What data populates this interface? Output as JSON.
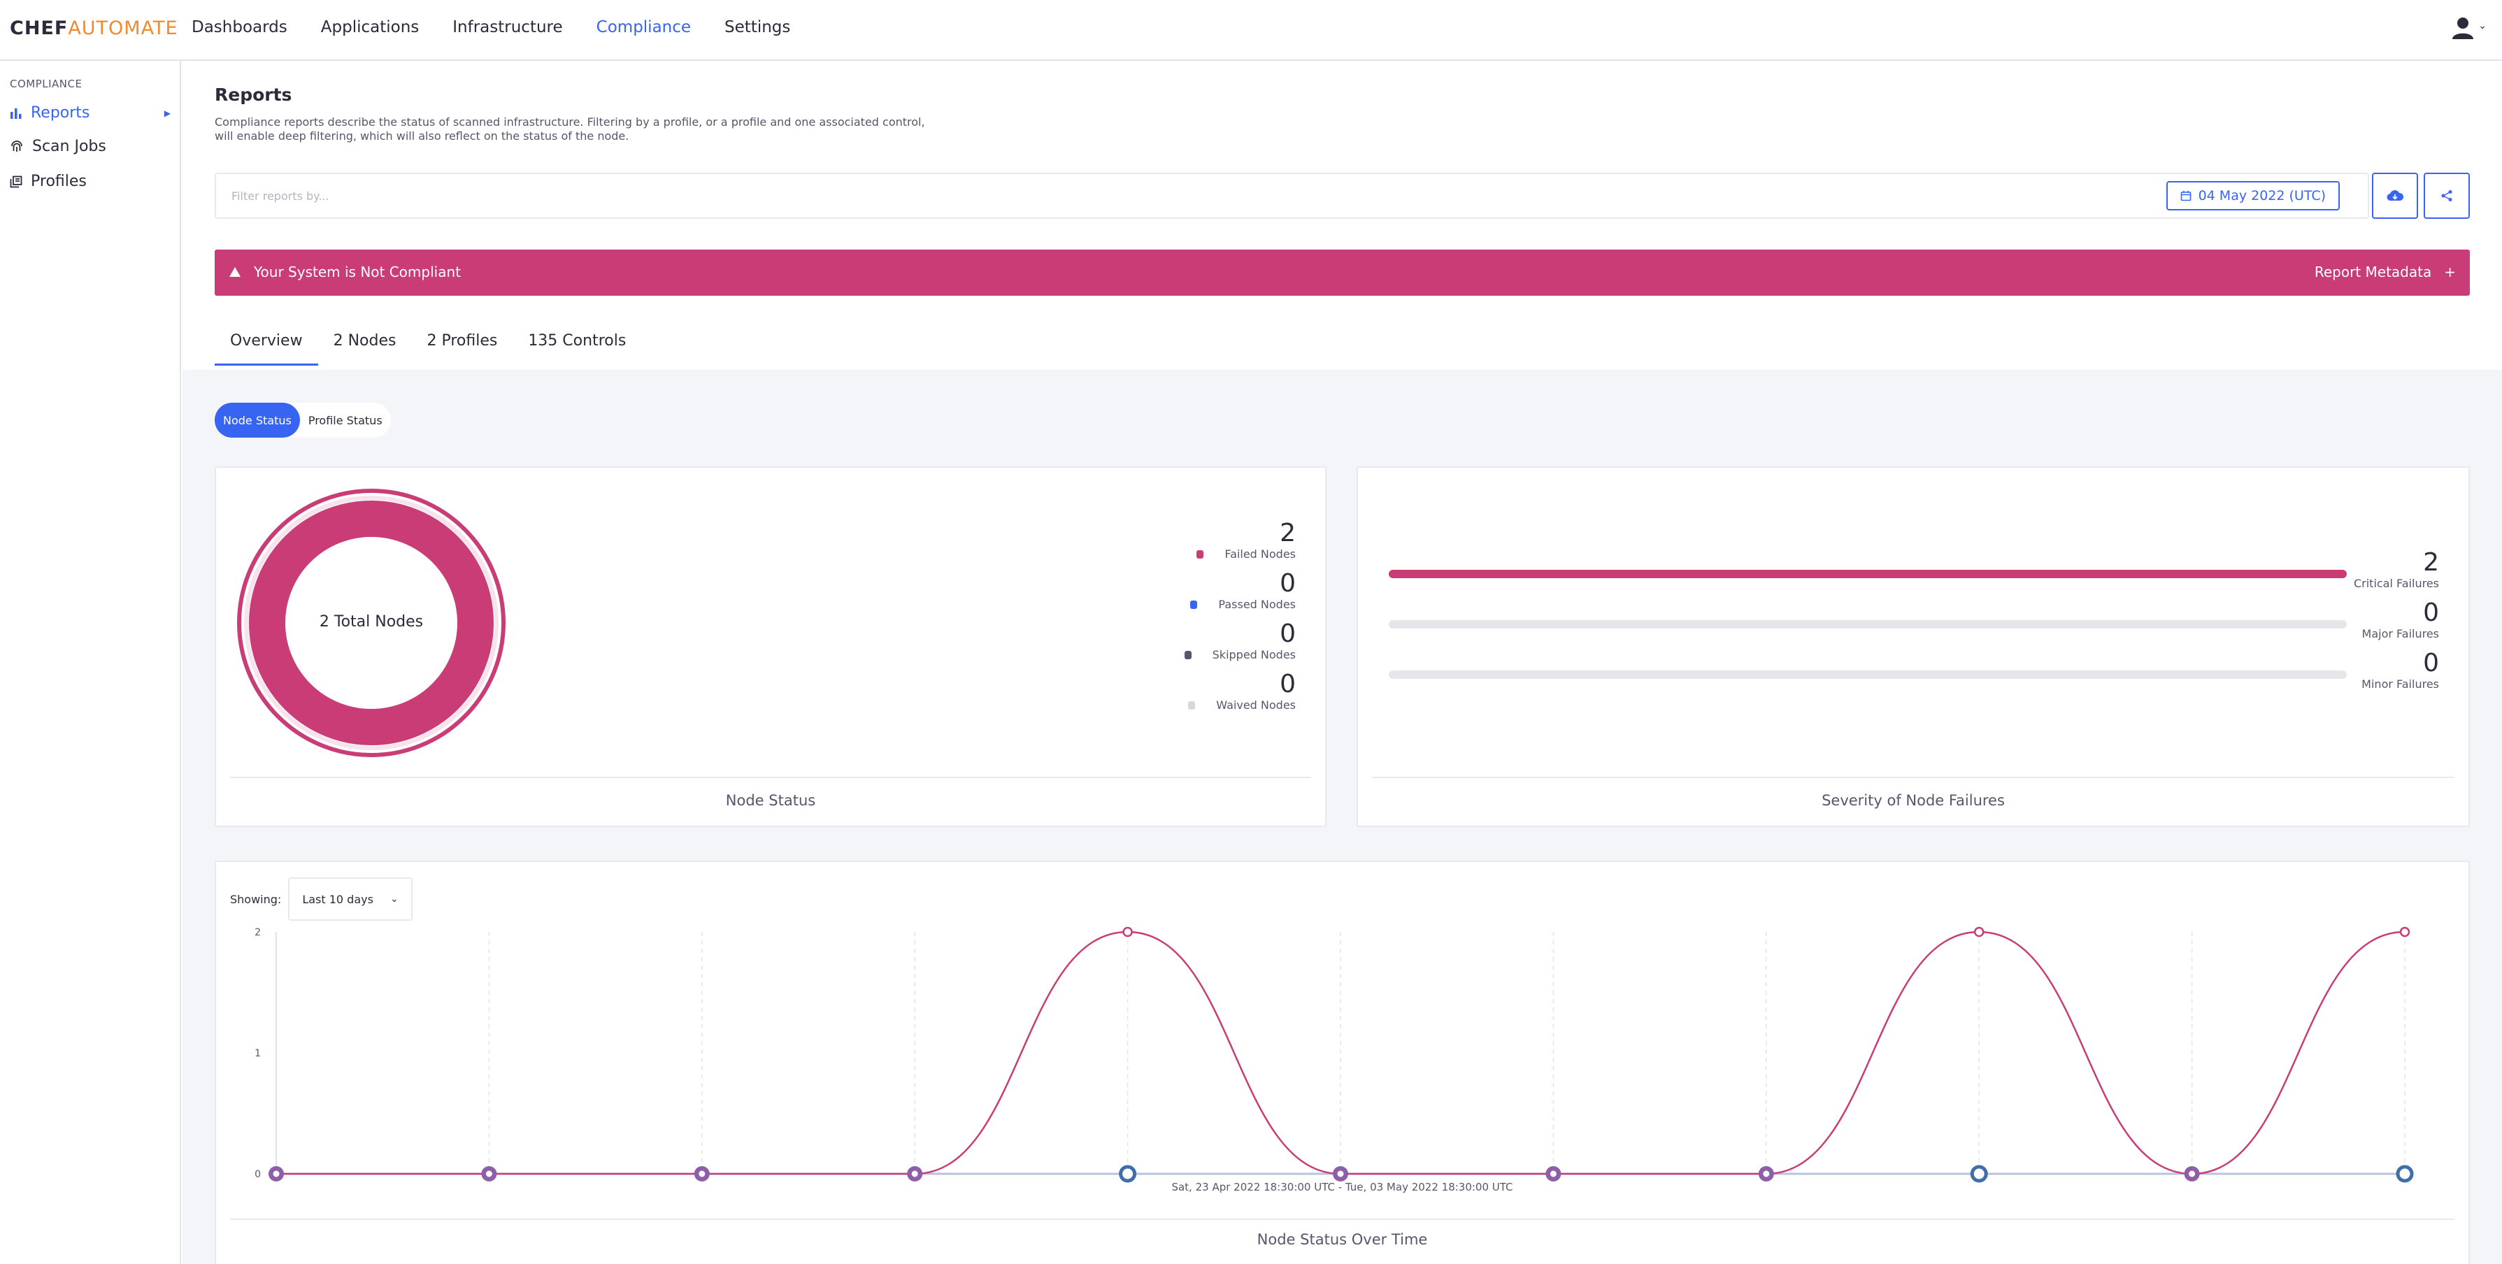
{
  "brand": {
    "part1": "CHEF",
    "part2": "AUTOMATE"
  },
  "nav": [
    {
      "label": "Dashboards"
    },
    {
      "label": "Applications"
    },
    {
      "label": "Infrastructure"
    },
    {
      "label": "Compliance",
      "active": true
    },
    {
      "label": "Settings"
    }
  ],
  "sidebar": {
    "heading": "COMPLIANCE",
    "items": [
      {
        "label": "Reports",
        "icon": "bar-chart-icon",
        "active": true
      },
      {
        "label": "Scan Jobs",
        "icon": "fingerprint-icon"
      },
      {
        "label": "Profiles",
        "icon": "library-icon"
      }
    ]
  },
  "page": {
    "title": "Reports",
    "description": "Compliance reports describe the status of scanned infrastructure. Filtering by a profile, or a profile and one associated control, will enable deep filtering, which will also reflect on the status of the node."
  },
  "filter": {
    "placeholder": "Filter reports by...",
    "date": "04 May 2022 (UTC)"
  },
  "banner": {
    "message": "Your System is Not Compliant",
    "metadata_label": "Report Metadata"
  },
  "tabs": [
    {
      "label": "Overview",
      "active": true
    },
    {
      "label": "2 Nodes"
    },
    {
      "label": "2 Profiles"
    },
    {
      "label": "135 Controls"
    }
  ],
  "toggle": {
    "node_status": "Node Status",
    "profile_status": "Profile Status"
  },
  "node_status": {
    "center_label": "2 Total Nodes",
    "caption": "Node Status",
    "legend": [
      {
        "value": "2",
        "label": "Failed Nodes",
        "color": "#c93c76"
      },
      {
        "value": "0",
        "label": "Passed Nodes",
        "color": "#3864f2"
      },
      {
        "value": "0",
        "label": "Skipped Nodes",
        "color": "#55576a"
      },
      {
        "value": "0",
        "label": "Waived Nodes",
        "color": "#d6d8dd"
      }
    ]
  },
  "severity": {
    "caption": "Severity of Node Failures",
    "rows": [
      {
        "value": "2",
        "label": "Critical Failures",
        "fraction": 1
      },
      {
        "value": "0",
        "label": "Major Failures",
        "fraction": 0
      },
      {
        "value": "0",
        "label": "Minor Failures",
        "fraction": 0
      }
    ]
  },
  "trend": {
    "showing_label": "Showing:",
    "range": "Last 10 days",
    "date_range": "Sat, 23 Apr 2022 18:30:00 UTC - Tue, 03 May 2022 18:30:00 UTC",
    "caption": "Node Status Over Time"
  },
  "chart_data": {
    "type": "line",
    "x": [
      0,
      1,
      2,
      3,
      4,
      5,
      6,
      7,
      8,
      9,
      10
    ],
    "ylim": [
      0,
      2
    ],
    "yticks": [
      "0",
      "1",
      "2"
    ],
    "series": [
      {
        "values": [
          0,
          0,
          0,
          0,
          2,
          0,
          0,
          0,
          2,
          0,
          2
        ],
        "color": "#c93c76"
      },
      {
        "values": [
          0,
          0,
          0,
          0,
          0,
          0,
          0,
          0,
          0,
          0,
          0
        ],
        "color": "#3f6fa6"
      }
    ]
  }
}
